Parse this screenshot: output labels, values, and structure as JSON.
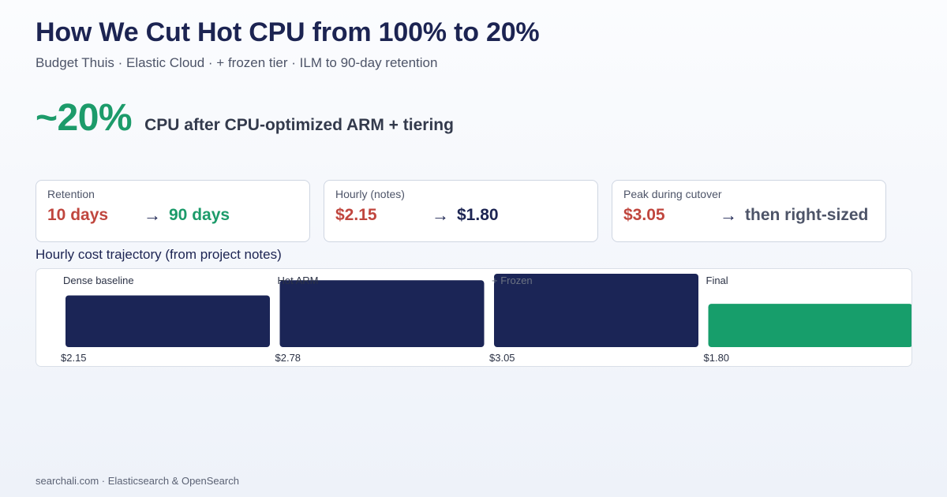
{
  "header": {
    "title": "How We Cut Hot CPU from 100% to 20%",
    "subtitle": "Budget Thuis · Elastic Cloud · + frozen tier · ILM to 90-day retention"
  },
  "hero": {
    "value": "~20%",
    "caption": "CPU after CPU-optimized ARM + tiering"
  },
  "cards": [
    {
      "label": "Retention",
      "from": "10 days",
      "arrow": "→",
      "to": "90 days",
      "to_color": "#1c9b6a"
    },
    {
      "label": "Hourly (notes)",
      "from": "$2.15",
      "arrow": "→",
      "to": "$1.80",
      "to_color": "#1c2452"
    },
    {
      "label": "Peak during cutover",
      "from": "$3.05",
      "arrow": "→",
      "to": "then right-sized",
      "to_color": "#4d5468"
    }
  ],
  "chart_heading": "Hourly cost trajectory (from project notes)",
  "chart_data": {
    "type": "bar",
    "categories": [
      "Dense baseline",
      "Hot ARM",
      "+ Frozen",
      "Final"
    ],
    "values": [
      2.15,
      2.78,
      3.05,
      1.8
    ],
    "value_labels": [
      "$2.15",
      "$2.78",
      "$3.05",
      "$1.80"
    ],
    "bar_colors": [
      "#1b2556",
      "#1b2556",
      "#1b2556",
      "#179e6b"
    ],
    "ylabel": "",
    "xlabel": "",
    "grid": false,
    "ylim": [
      0,
      3.05
    ]
  },
  "footer": "searchali.com · Elasticsearch & OpenSearch"
}
